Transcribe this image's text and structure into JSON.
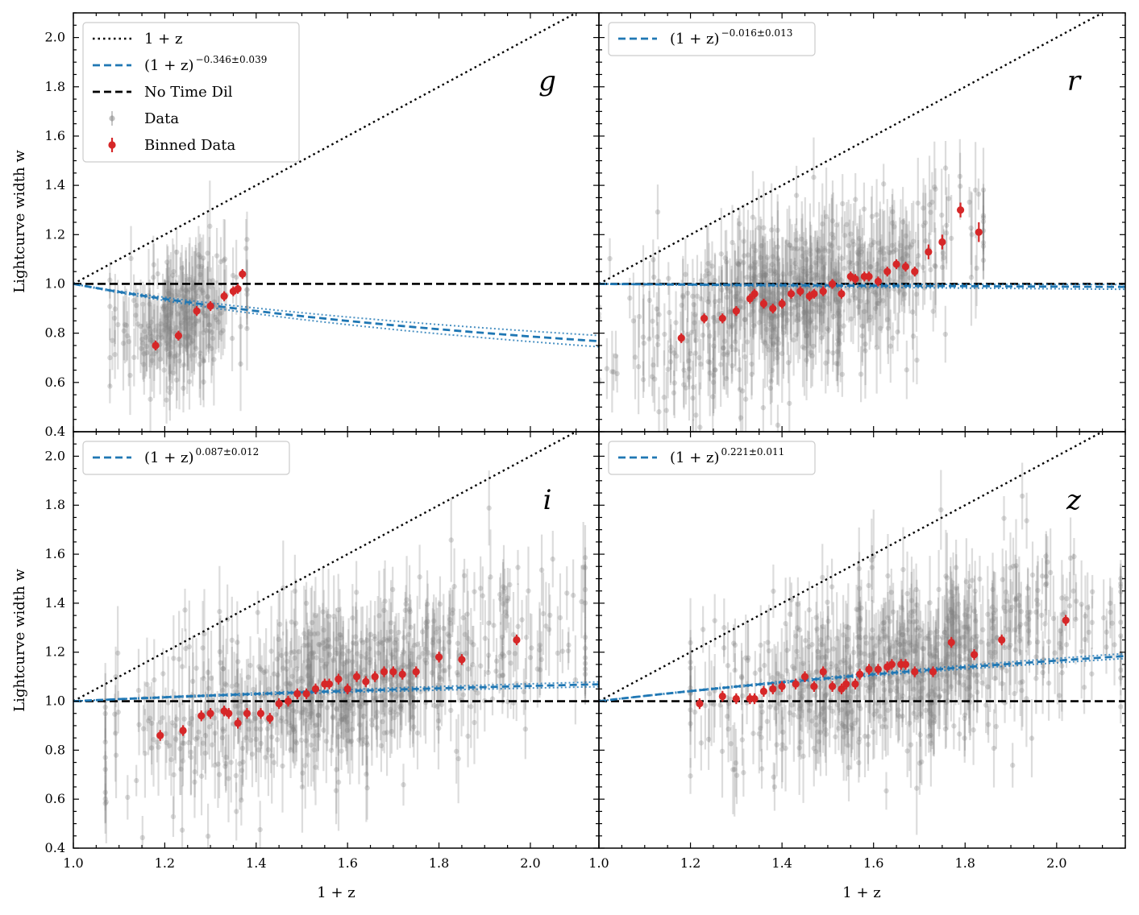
{
  "figure": {
    "ylabel": "Lightcurve width w",
    "xlabel": "1 + z"
  },
  "colors": {
    "data": "#808080",
    "binned": "#d62728",
    "fit": "#1f77b4",
    "reference": "#000000"
  },
  "chart_data": [
    {
      "type": "scatter",
      "band": "g",
      "xlim": [
        1.0,
        2.15
      ],
      "ylim": [
        0.4,
        2.1
      ],
      "xticks": [
        "1.0",
        "1.2",
        "1.4",
        "1.6",
        "1.8",
        "2.0"
      ],
      "yticks": [
        "0.4",
        "0.6",
        "0.8",
        "1.0",
        "1.2",
        "1.4",
        "1.6",
        "1.8",
        "2.0"
      ],
      "fit_exponent": -0.346,
      "fit_error": 0.039,
      "legend": [
        {
          "label": "1 + z",
          "style": "dotted-black"
        },
        {
          "label": "(1 + z)",
          "exp": "−0.346±0.039",
          "style": "dashed-blue"
        },
        {
          "label": "No Time Dil",
          "style": "dashed-black"
        },
        {
          "label": "Data",
          "style": "gray-point"
        },
        {
          "label": "Binned Data",
          "style": "red-point"
        }
      ],
      "data_cloud": {
        "x_range": [
          1.08,
          1.38
        ],
        "count": 240,
        "spread": 0.12
      },
      "binned": {
        "x": [
          1.18,
          1.23,
          1.27,
          1.3,
          1.33,
          1.35,
          1.36,
          1.37
        ],
        "y": [
          0.75,
          0.79,
          0.89,
          0.91,
          0.95,
          0.97,
          0.98,
          1.04
        ],
        "err": [
          0.02,
          0.02,
          0.02,
          0.02,
          0.02,
          0.02,
          0.02,
          0.02
        ]
      }
    },
    {
      "type": "scatter",
      "band": "r",
      "xlim": [
        1.0,
        2.15
      ],
      "ylim": [
        0.4,
        2.1
      ],
      "xticks": [
        "1.0",
        "1.2",
        "1.4",
        "1.6",
        "1.8",
        "2.0"
      ],
      "yticks": [
        "0.4",
        "0.6",
        "0.8",
        "1.0",
        "1.2",
        "1.4",
        "1.6",
        "1.8",
        "2.0"
      ],
      "fit_exponent": -0.016,
      "fit_error": 0.013,
      "legend": [
        {
          "label": "(1 + z)",
          "exp": "−0.016±0.013",
          "style": "dashed-blue"
        }
      ],
      "data_cloud": {
        "x_range": [
          1.0,
          1.84
        ],
        "count": 650,
        "spread": 0.15
      },
      "binned": {
        "x": [
          1.18,
          1.23,
          1.27,
          1.3,
          1.33,
          1.34,
          1.36,
          1.38,
          1.4,
          1.42,
          1.44,
          1.46,
          1.47,
          1.49,
          1.51,
          1.53,
          1.55,
          1.56,
          1.58,
          1.59,
          1.61,
          1.63,
          1.65,
          1.67,
          1.69,
          1.72,
          1.75,
          1.79,
          1.83
        ],
        "y": [
          0.78,
          0.86,
          0.86,
          0.89,
          0.94,
          0.96,
          0.92,
          0.9,
          0.92,
          0.96,
          0.97,
          0.95,
          0.96,
          0.97,
          1.0,
          0.96,
          1.03,
          1.02,
          1.03,
          1.03,
          1.01,
          1.05,
          1.08,
          1.07,
          1.05,
          1.13,
          1.17,
          1.3,
          1.21
        ],
        "err": [
          0.02,
          0.02,
          0.02,
          0.02,
          0.02,
          0.02,
          0.02,
          0.02,
          0.02,
          0.02,
          0.02,
          0.02,
          0.02,
          0.02,
          0.02,
          0.02,
          0.02,
          0.02,
          0.02,
          0.02,
          0.02,
          0.02,
          0.02,
          0.02,
          0.02,
          0.03,
          0.03,
          0.03,
          0.04
        ]
      }
    },
    {
      "type": "scatter",
      "band": "i",
      "xlim": [
        1.0,
        2.15
      ],
      "ylim": [
        0.4,
        2.1
      ],
      "xticks": [
        "1.0",
        "1.2",
        "1.4",
        "1.6",
        "1.8",
        "2.0"
      ],
      "yticks": [
        "0.4",
        "0.6",
        "0.8",
        "1.0",
        "1.2",
        "1.4",
        "1.6",
        "1.8",
        "2.0"
      ],
      "fit_exponent": 0.087,
      "fit_error": 0.012,
      "legend": [
        {
          "label": "(1 + z)",
          "exp": "0.087±0.012",
          "style": "dashed-blue"
        }
      ],
      "data_cloud": {
        "x_range": [
          1.07,
          2.12
        ],
        "count": 700,
        "spread": 0.17
      },
      "binned": {
        "x": [
          1.19,
          1.24,
          1.28,
          1.3,
          1.33,
          1.34,
          1.36,
          1.38,
          1.41,
          1.43,
          1.45,
          1.47,
          1.49,
          1.51,
          1.53,
          1.55,
          1.56,
          1.58,
          1.6,
          1.62,
          1.64,
          1.66,
          1.68,
          1.7,
          1.72,
          1.75,
          1.8,
          1.85,
          1.97
        ],
        "y": [
          0.86,
          0.88,
          0.94,
          0.95,
          0.96,
          0.95,
          0.91,
          0.95,
          0.95,
          0.93,
          0.99,
          1.0,
          1.03,
          1.03,
          1.05,
          1.07,
          1.07,
          1.09,
          1.05,
          1.1,
          1.08,
          1.1,
          1.12,
          1.12,
          1.11,
          1.12,
          1.18,
          1.17,
          1.25
        ]
      }
    },
    {
      "type": "scatter",
      "band": "z",
      "xlim": [
        1.0,
        2.15
      ],
      "ylim": [
        0.4,
        2.1
      ],
      "xticks": [
        "1.0",
        "1.2",
        "1.4",
        "1.6",
        "1.8",
        "2.0"
      ],
      "yticks": [
        "0.4",
        "0.6",
        "0.8",
        "1.0",
        "1.2",
        "1.4",
        "1.6",
        "1.8",
        "2.0"
      ],
      "fit_exponent": 0.221,
      "fit_error": 0.011,
      "legend": [
        {
          "label": "(1 + z)",
          "exp": "0.221±0.011",
          "style": "dashed-blue"
        }
      ],
      "data_cloud": {
        "x_range": [
          1.2,
          2.14
        ],
        "count": 700,
        "spread": 0.17
      },
      "binned": {
        "x": [
          1.22,
          1.27,
          1.3,
          1.33,
          1.34,
          1.36,
          1.38,
          1.4,
          1.43,
          1.45,
          1.47,
          1.49,
          1.51,
          1.53,
          1.54,
          1.56,
          1.57,
          1.59,
          1.61,
          1.63,
          1.64,
          1.66,
          1.67,
          1.69,
          1.73,
          1.77,
          1.82,
          1.88,
          2.02
        ],
        "y": [
          0.99,
          1.02,
          1.01,
          1.01,
          1.01,
          1.04,
          1.05,
          1.06,
          1.07,
          1.1,
          1.06,
          1.12,
          1.06,
          1.05,
          1.07,
          1.07,
          1.11,
          1.13,
          1.13,
          1.14,
          1.15,
          1.15,
          1.15,
          1.12,
          1.12,
          1.24,
          1.19,
          1.25,
          1.33
        ]
      }
    }
  ]
}
